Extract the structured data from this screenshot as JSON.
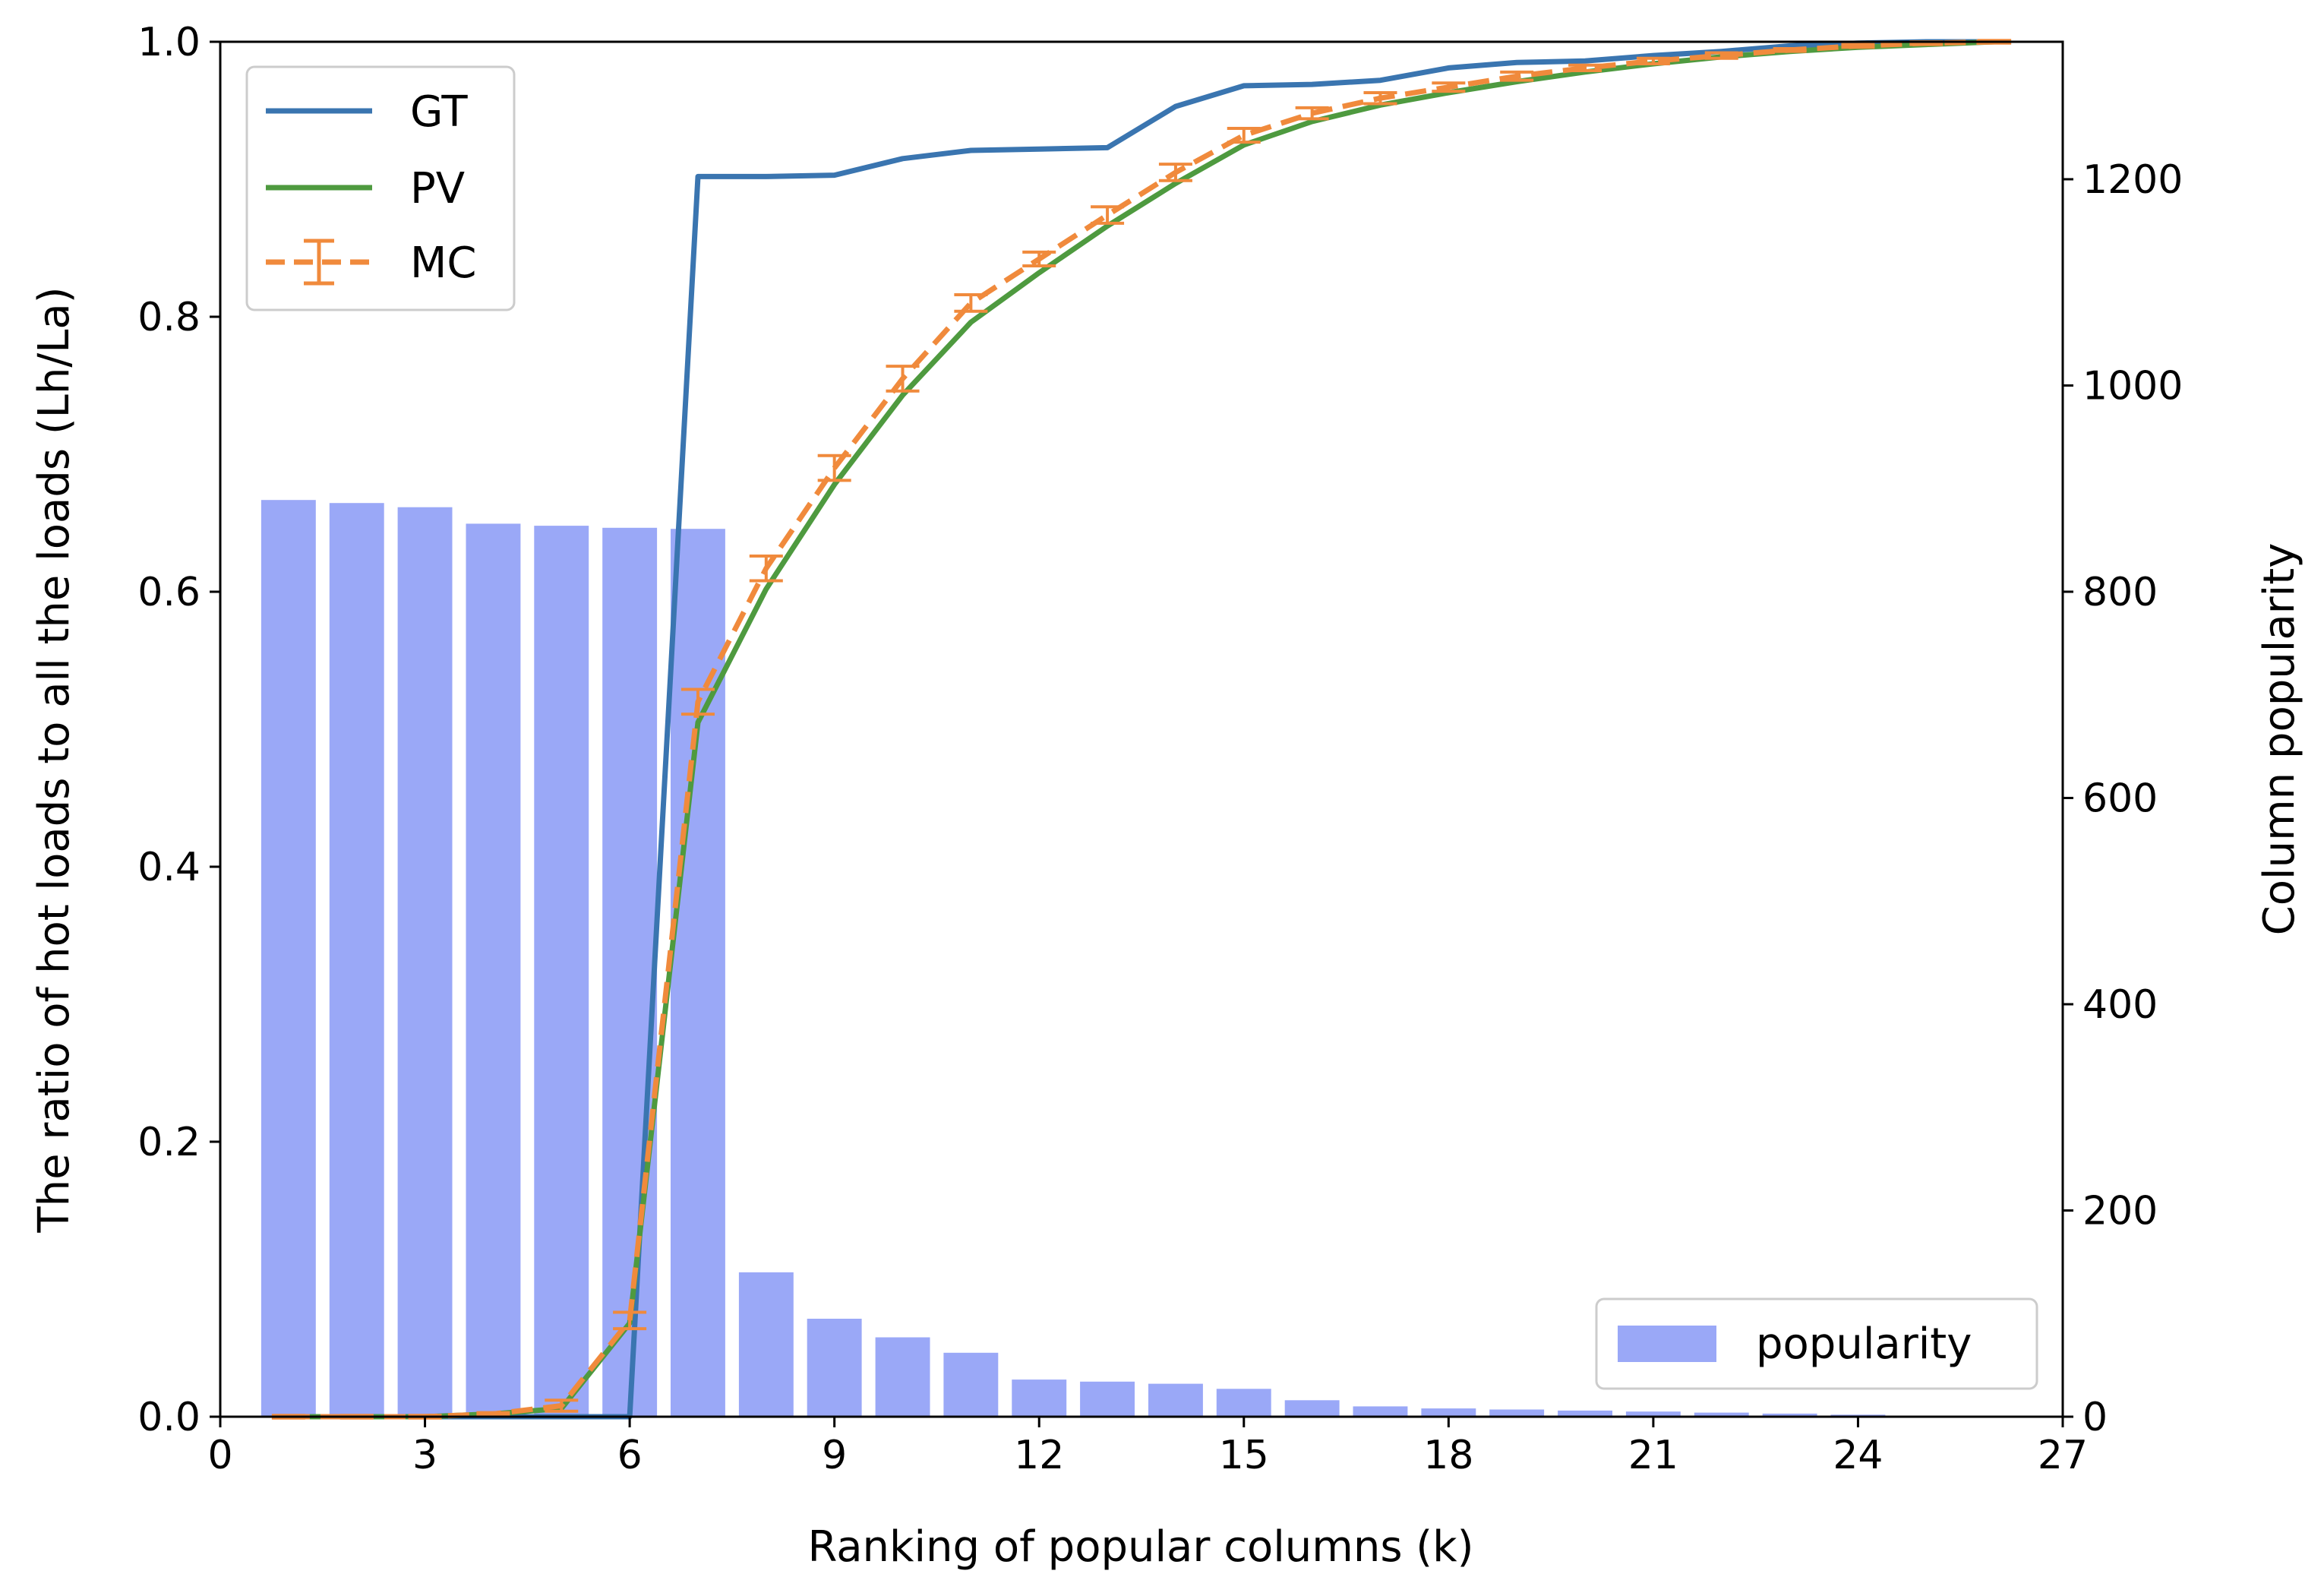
{
  "chart_data": {
    "type": "line",
    "xlabel": "Ranking of popular columns (k)",
    "ylabel_left": "The ratio of hot loads to all the loads (Lh/La)",
    "ylabel_right": "Column popularity",
    "xlim": [
      0,
      27
    ],
    "ylim_left": [
      0,
      1
    ],
    "ylim_right": [
      0,
      1333.3
    ],
    "x_ticks": [
      0,
      3,
      6,
      9,
      12,
      15,
      18,
      21,
      24,
      27
    ],
    "y_ticks_left": [
      0.0,
      0.2,
      0.4,
      0.6,
      0.8,
      1.0
    ],
    "y_ticks_right": [
      0,
      200,
      400,
      600,
      800,
      1000,
      1200
    ],
    "x_tick_labels": [
      "0",
      "3",
      "6",
      "9",
      "12",
      "15",
      "18",
      "21",
      "24",
      "27"
    ],
    "y_tick_labels_left": [
      "0.0",
      "0.2",
      "0.4",
      "0.6",
      "0.8",
      "1.0"
    ],
    "y_tick_labels_right": [
      "0",
      "200",
      "400",
      "600",
      "800",
      "1000",
      "1200"
    ],
    "grid": false,
    "legend_lines_position": "top-left",
    "legend_bars_position": "bottom-right",
    "series": [
      {
        "name": "GT",
        "color": "#3a75b0",
        "style": "solid",
        "axis": "left",
        "x": [
          1,
          2,
          3,
          4,
          5,
          6,
          7,
          8,
          9,
          10,
          11,
          12,
          13,
          14,
          15,
          16,
          17,
          18,
          19,
          20,
          21,
          22,
          23,
          24,
          25,
          26
        ],
        "y": [
          0,
          0,
          0,
          0,
          0,
          0,
          0.902,
          0.902,
          0.903,
          0.915,
          0.921,
          0.922,
          0.923,
          0.953,
          0.968,
          0.969,
          0.972,
          0.981,
          0.985,
          0.986,
          0.99,
          0.993,
          0.997,
          0.999,
          1.0,
          1.0
        ]
      },
      {
        "name": "PV",
        "color": "#4e9a3f",
        "style": "solid",
        "axis": "left",
        "x": [
          1,
          2,
          3,
          4,
          5,
          6,
          7,
          8,
          9,
          10,
          11,
          12,
          13,
          14,
          15,
          16,
          17,
          18,
          19,
          20,
          21,
          22,
          23,
          24,
          25,
          26
        ],
        "y": [
          0,
          0,
          0,
          0.002,
          0.006,
          0.068,
          0.505,
          0.602,
          0.678,
          0.743,
          0.796,
          0.832,
          0.866,
          0.897,
          0.925,
          0.942,
          0.954,
          0.963,
          0.971,
          0.978,
          0.984,
          0.989,
          0.993,
          0.996,
          0.998,
          1.0
        ]
      },
      {
        "name": "MC",
        "color": "#f08a3c",
        "style": "dashed",
        "axis": "left",
        "x": [
          1,
          2,
          3,
          4,
          5,
          6,
          7,
          8,
          9,
          10,
          11,
          12,
          13,
          14,
          15,
          16,
          17,
          18,
          19,
          20,
          21,
          22,
          23,
          24,
          25,
          26
        ],
        "y": [
          0,
          0,
          0,
          0.002,
          0.008,
          0.07,
          0.52,
          0.617,
          0.69,
          0.755,
          0.81,
          0.842,
          0.874,
          0.905,
          0.932,
          0.948,
          0.959,
          0.967,
          0.975,
          0.981,
          0.986,
          0.99,
          0.994,
          0.997,
          0.999,
          1.0
        ],
        "err": [
          0.001,
          0.001,
          0.001,
          0.001,
          0.004,
          0.006,
          0.009,
          0.009,
          0.009,
          0.009,
          0.006,
          0.005,
          0.006,
          0.006,
          0.005,
          0.004,
          0.004,
          0.003,
          0.003,
          0.002,
          0.002,
          0.002,
          0.001,
          0.001,
          0.001,
          0.001
        ]
      }
    ],
    "bars": {
      "name": "popularity",
      "color": "#9aa8f7",
      "axis": "right",
      "x": [
        1,
        2,
        3,
        4,
        5,
        6,
        7,
        8,
        9,
        10,
        11,
        12,
        13,
        14,
        15,
        16,
        17,
        18,
        19,
        20,
        21,
        22,
        23,
        24
      ],
      "values": [
        889,
        886,
        882,
        866,
        864,
        862,
        861,
        140,
        95,
        77,
        62,
        36,
        34,
        32,
        27,
        16,
        10,
        8,
        7,
        6,
        5,
        4,
        3,
        2
      ]
    }
  }
}
